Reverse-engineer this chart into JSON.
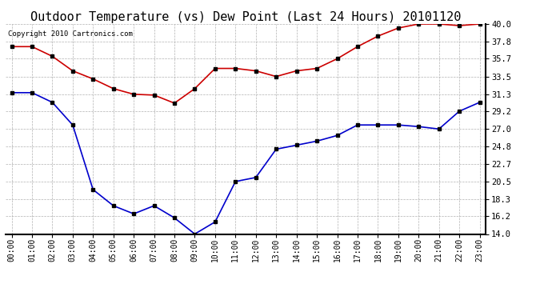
{
  "title": "Outdoor Temperature (vs) Dew Point (Last 24 Hours) 20101120",
  "copyright_text": "Copyright 2010 Cartronics.com",
  "hours": [
    "00:00",
    "01:00",
    "02:00",
    "03:00",
    "04:00",
    "05:00",
    "06:00",
    "07:00",
    "08:00",
    "09:00",
    "10:00",
    "11:00",
    "12:00",
    "13:00",
    "14:00",
    "15:00",
    "16:00",
    "17:00",
    "18:00",
    "19:00",
    "20:00",
    "21:00",
    "22:00",
    "23:00"
  ],
  "temp": [
    37.2,
    37.2,
    36.0,
    34.2,
    33.2,
    32.0,
    31.3,
    31.2,
    30.2,
    32.0,
    34.5,
    34.5,
    34.2,
    33.5,
    34.2,
    34.5,
    35.7,
    37.2,
    38.5,
    39.5,
    40.0,
    40.0,
    39.8,
    40.0
  ],
  "dew": [
    31.5,
    31.5,
    30.3,
    27.5,
    19.5,
    17.5,
    16.5,
    17.5,
    16.0,
    14.0,
    15.5,
    20.5,
    21.0,
    24.5,
    25.0,
    25.5,
    26.2,
    27.5,
    27.5,
    27.5,
    27.3,
    27.0,
    29.2,
    30.3
  ],
  "temp_color": "#cc0000",
  "dew_color": "#0000cc",
  "marker_color": "#000000",
  "bg_color": "#ffffff",
  "grid_color": "#aaaaaa",
  "ylim": [
    14.0,
    40.0
  ],
  "yticks": [
    14.0,
    16.2,
    18.3,
    20.5,
    22.7,
    24.8,
    27.0,
    29.2,
    31.3,
    33.5,
    35.7,
    37.8,
    40.0
  ],
  "title_fontsize": 11,
  "copyright_fontsize": 6.5
}
